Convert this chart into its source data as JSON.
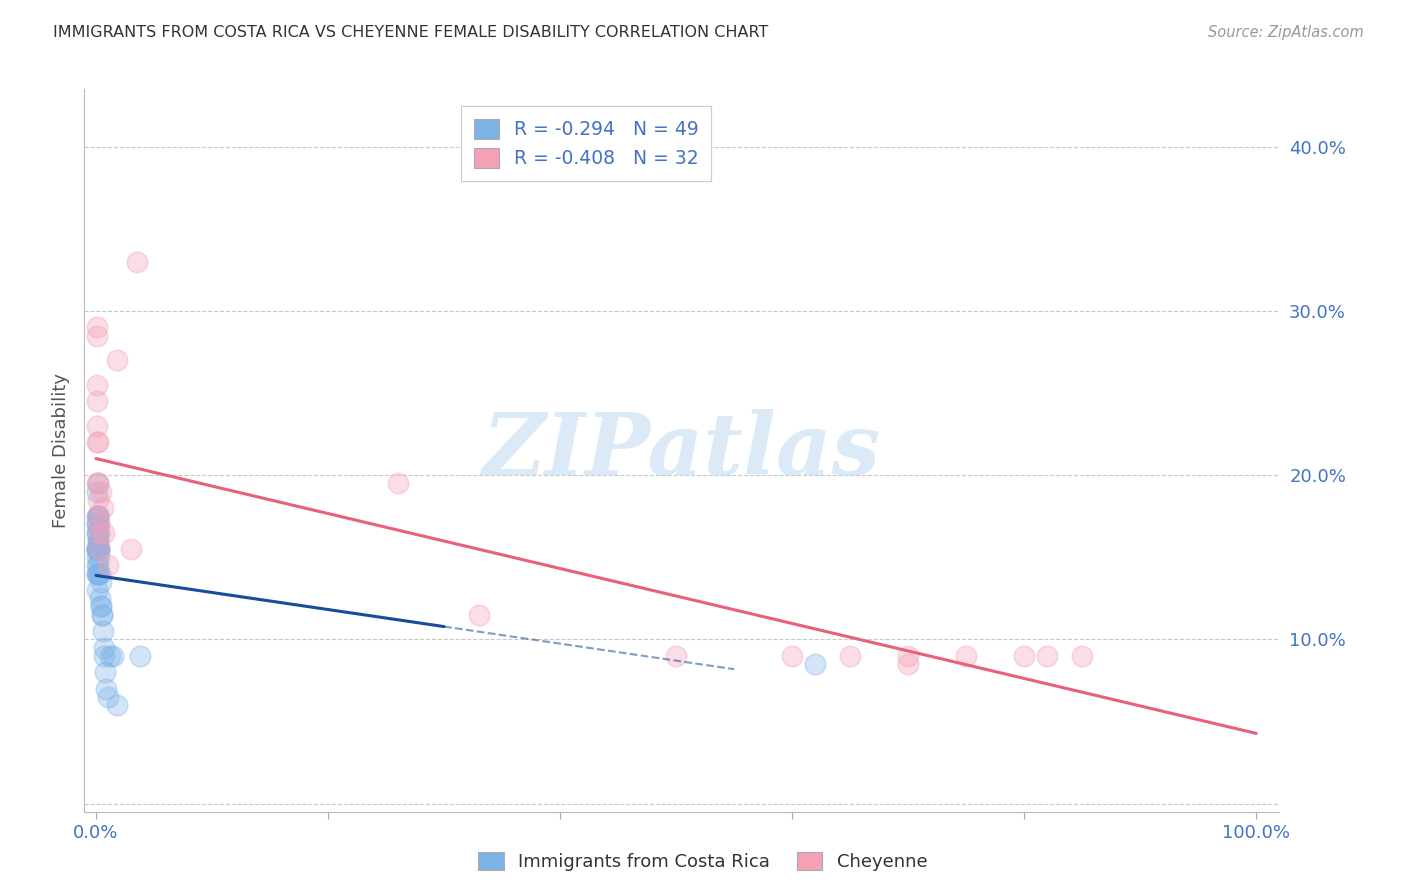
{
  "title": "IMMIGRANTS FROM COSTA RICA VS CHEYENNE FEMALE DISABILITY CORRELATION CHART",
  "source": "Source: ZipAtlas.com",
  "ylabel": "Female Disability",
  "xlim": [
    -0.01,
    1.02
  ],
  "ylim": [
    -0.005,
    0.435
  ],
  "blue_R": -0.294,
  "blue_N": 49,
  "pink_R": -0.408,
  "pink_N": 32,
  "blue_color": "#7EB3E8",
  "pink_color": "#F4A0B5",
  "blue_line_color": "#1A4A9A",
  "pink_line_color": "#E8607A",
  "background_color": "#ffffff",
  "grid_color": "#bbbbbb",
  "label_color": "#4472C4",
  "title_color": "#333333",
  "watermark_text": "ZIPatlas",
  "series1_label": "Immigrants from Costa Rica",
  "series2_label": "Cheyenne",
  "blue_x": [
    0.0005,
    0.0005,
    0.0005,
    0.0005,
    0.0008,
    0.0008,
    0.001,
    0.001,
    0.001,
    0.001,
    0.001,
    0.0012,
    0.0012,
    0.0013,
    0.0013,
    0.0015,
    0.0015,
    0.0015,
    0.0015,
    0.0018,
    0.0018,
    0.002,
    0.002,
    0.002,
    0.0022,
    0.0022,
    0.0025,
    0.0025,
    0.0028,
    0.003,
    0.003,
    0.0035,
    0.0035,
    0.004,
    0.004,
    0.0045,
    0.005,
    0.0055,
    0.006,
    0.0065,
    0.007,
    0.008,
    0.009,
    0.01,
    0.012,
    0.015,
    0.018,
    0.038,
    0.62
  ],
  "blue_y": [
    0.17,
    0.155,
    0.145,
    0.13,
    0.155,
    0.14,
    0.19,
    0.175,
    0.165,
    0.155,
    0.14,
    0.17,
    0.155,
    0.165,
    0.15,
    0.195,
    0.175,
    0.16,
    0.145,
    0.175,
    0.155,
    0.175,
    0.16,
    0.14,
    0.165,
    0.15,
    0.17,
    0.155,
    0.155,
    0.155,
    0.14,
    0.14,
    0.125,
    0.135,
    0.12,
    0.12,
    0.115,
    0.115,
    0.105,
    0.095,
    0.09,
    0.08,
    0.07,
    0.065,
    0.09,
    0.09,
    0.06,
    0.09,
    0.085
  ],
  "pink_x": [
    0.0005,
    0.0005,
    0.0008,
    0.0008,
    0.001,
    0.001,
    0.0012,
    0.0015,
    0.0018,
    0.002,
    0.002,
    0.0025,
    0.003,
    0.003,
    0.004,
    0.006,
    0.007,
    0.01,
    0.018,
    0.03,
    0.035,
    0.5,
    0.6,
    0.65,
    0.7,
    0.7,
    0.75,
    0.8,
    0.82,
    0.85,
    0.33,
    0.26
  ],
  "pink_y": [
    0.29,
    0.285,
    0.255,
    0.245,
    0.23,
    0.22,
    0.195,
    0.185,
    0.22,
    0.195,
    0.175,
    0.17,
    0.165,
    0.155,
    0.19,
    0.18,
    0.165,
    0.145,
    0.27,
    0.155,
    0.33,
    0.09,
    0.09,
    0.09,
    0.09,
    0.085,
    0.09,
    0.09,
    0.09,
    0.09,
    0.115,
    0.195
  ]
}
